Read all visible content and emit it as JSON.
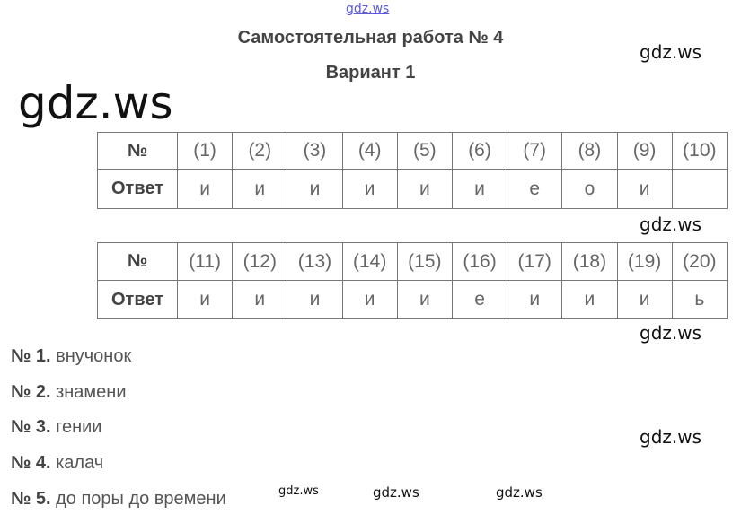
{
  "watermarks": {
    "top": "gdz.ws",
    "big": "gdz.ws",
    "side1": "gdz.ws",
    "side2": "gdz.ws",
    "side3": "gdz.ws",
    "side4": "gdz.ws",
    "bottom1": "gdz.ws",
    "bottom2": "gdz.ws",
    "bottom3": "gdz.ws"
  },
  "title": "Самостоятельная работа № 4",
  "variant": "Вариант 1",
  "table1": {
    "header_label": "№",
    "answer_label": "Ответ",
    "numbers": [
      "(1)",
      "(2)",
      "(3)",
      "(4)",
      "(5)",
      "(6)",
      "(7)",
      "(8)",
      "(9)",
      "(10)"
    ],
    "answers": [
      "и",
      "и",
      "и",
      "и",
      "и",
      "и",
      "е",
      "о",
      "и",
      ""
    ]
  },
  "table2": {
    "header_label": "№",
    "answer_label": "Ответ",
    "numbers": [
      "(11)",
      "(12)",
      "(13)",
      "(14)",
      "(15)",
      "(16)",
      "(17)",
      "(18)",
      "(19)",
      "(20)"
    ],
    "answers": [
      "и",
      "и",
      "и",
      "и",
      "и",
      "е",
      "и",
      "и",
      "и",
      "ь"
    ]
  },
  "items": [
    {
      "label": "№ 1.",
      "text": "внучонок"
    },
    {
      "label": "№ 2.",
      "text": "знамени"
    },
    {
      "label": "№ 3.",
      "text": "гении"
    },
    {
      "label": "№ 4.",
      "text": "калач"
    },
    {
      "label": "№ 5.",
      "text": "до поры до времени"
    }
  ]
}
